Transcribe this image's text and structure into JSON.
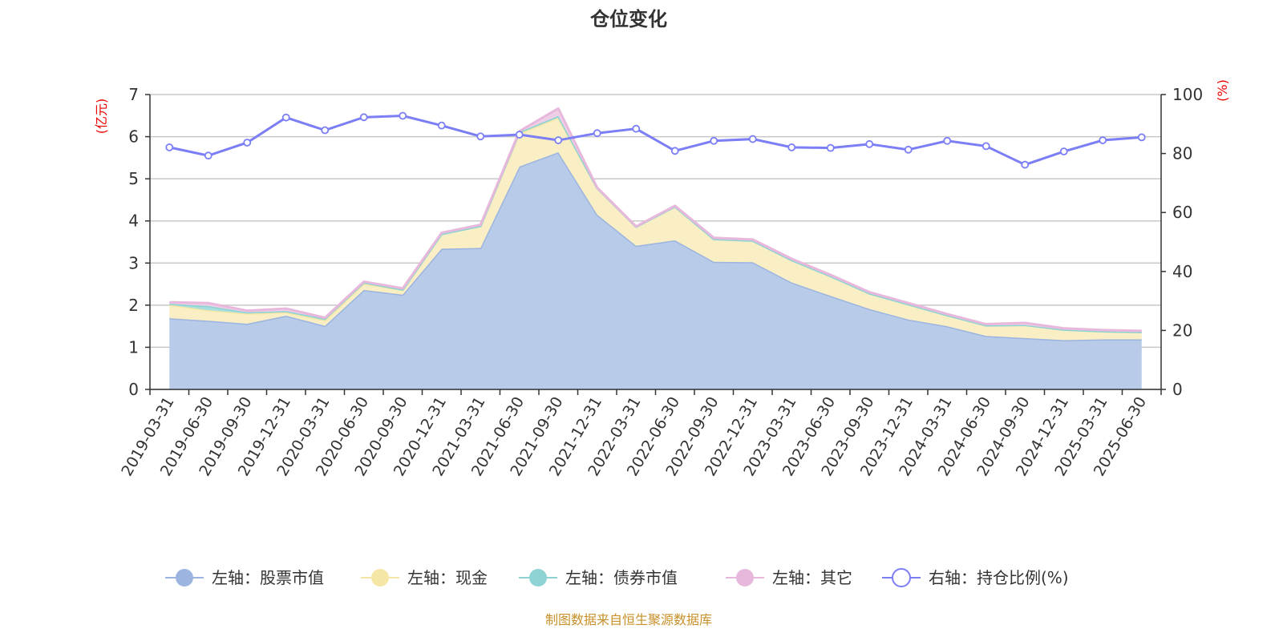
{
  "chart_data": {
    "type": "area",
    "title": "仓位变化",
    "left_axis_unit": "(亿元)",
    "right_axis_unit": "(%)",
    "ylim_left": [
      0,
      7
    ],
    "ylim_right": [
      0,
      100
    ],
    "yticks_left": [
      "0",
      "1",
      "2",
      "3",
      "4",
      "5",
      "6",
      "7"
    ],
    "yticks_right": [
      "0",
      "20",
      "40",
      "60",
      "80",
      "100"
    ],
    "grid": true,
    "stacked": true,
    "legend_position": "bottom",
    "categories": [
      "2019-03-31",
      "2019-06-30",
      "2019-09-30",
      "2019-12-31",
      "2020-03-31",
      "2020-06-30",
      "2020-09-30",
      "2020-12-31",
      "2021-03-31",
      "2021-06-30",
      "2021-09-30",
      "2021-12-31",
      "2022-03-31",
      "2022-06-30",
      "2022-09-30",
      "2022-12-31",
      "2023-03-31",
      "2023-06-30",
      "2023-09-30",
      "2023-12-31",
      "2024-03-31",
      "2024-06-30",
      "2024-09-30",
      "2024-12-31",
      "2025-03-31",
      "2025-06-30"
    ],
    "series": [
      {
        "name": "左轴：股票市值",
        "axis": "left",
        "color": "#9bb4e0",
        "fill": "#b8cbe9",
        "values": [
          1.69,
          1.63,
          1.56,
          1.75,
          1.51,
          2.36,
          2.25,
          3.34,
          3.36,
          5.29,
          5.63,
          4.15,
          3.41,
          3.54,
          3.03,
          3.02,
          2.54,
          2.22,
          1.91,
          1.66,
          1.5,
          1.27,
          1.22,
          1.17,
          1.19,
          1.19
        ]
      },
      {
        "name": "左轴：现金",
        "axis": "left",
        "color": "#f6e6a6",
        "fill": "#faeec4",
        "values": [
          0.32,
          0.25,
          0.24,
          0.08,
          0.13,
          0.15,
          0.11,
          0.35,
          0.52,
          0.79,
          0.82,
          0.63,
          0.45,
          0.8,
          0.54,
          0.51,
          0.53,
          0.47,
          0.37,
          0.36,
          0.26,
          0.25,
          0.31,
          0.25,
          0.19,
          0.17
        ]
      },
      {
        "name": "左轴：债券市值",
        "axis": "left",
        "color": "#8dd3d3",
        "fill": "#a9dede",
        "values": [
          0.02,
          0.1,
          0.03,
          0.03,
          0.04,
          0.03,
          0.01,
          0.0,
          0.0,
          0.03,
          0.04,
          0.0,
          0.0,
          0.0,
          0.0,
          0.0,
          0.0,
          0.0,
          0.0,
          0.0,
          0.0,
          0.0,
          0.0,
          0.0,
          0.0,
          0.0
        ]
      },
      {
        "name": "左轴：其它",
        "axis": "left",
        "color": "#e8b8dc",
        "fill": "#efcfe6",
        "values": [
          0.04,
          0.07,
          0.04,
          0.06,
          0.02,
          0.02,
          0.03,
          0.03,
          0.03,
          0.02,
          0.18,
          0.01,
          0.01,
          0.02,
          0.03,
          0.03,
          0.03,
          0.03,
          0.03,
          0.03,
          0.03,
          0.03,
          0.05,
          0.03,
          0.03,
          0.03
        ]
      },
      {
        "name": "右轴：持仓比例(%)",
        "axis": "right",
        "type": "line",
        "color": "#7b7ef5",
        "values": [
          82.1,
          79.3,
          83.7,
          92.2,
          87.9,
          92.3,
          92.8,
          89.5,
          85.8,
          86.4,
          84.5,
          86.9,
          88.4,
          80.9,
          84.3,
          84.9,
          82.1,
          81.9,
          83.2,
          81.3,
          84.3,
          82.5,
          76.2,
          80.7,
          84.5,
          85.5
        ]
      }
    ]
  },
  "footer": "制图数据来自恒生聚源数据库"
}
